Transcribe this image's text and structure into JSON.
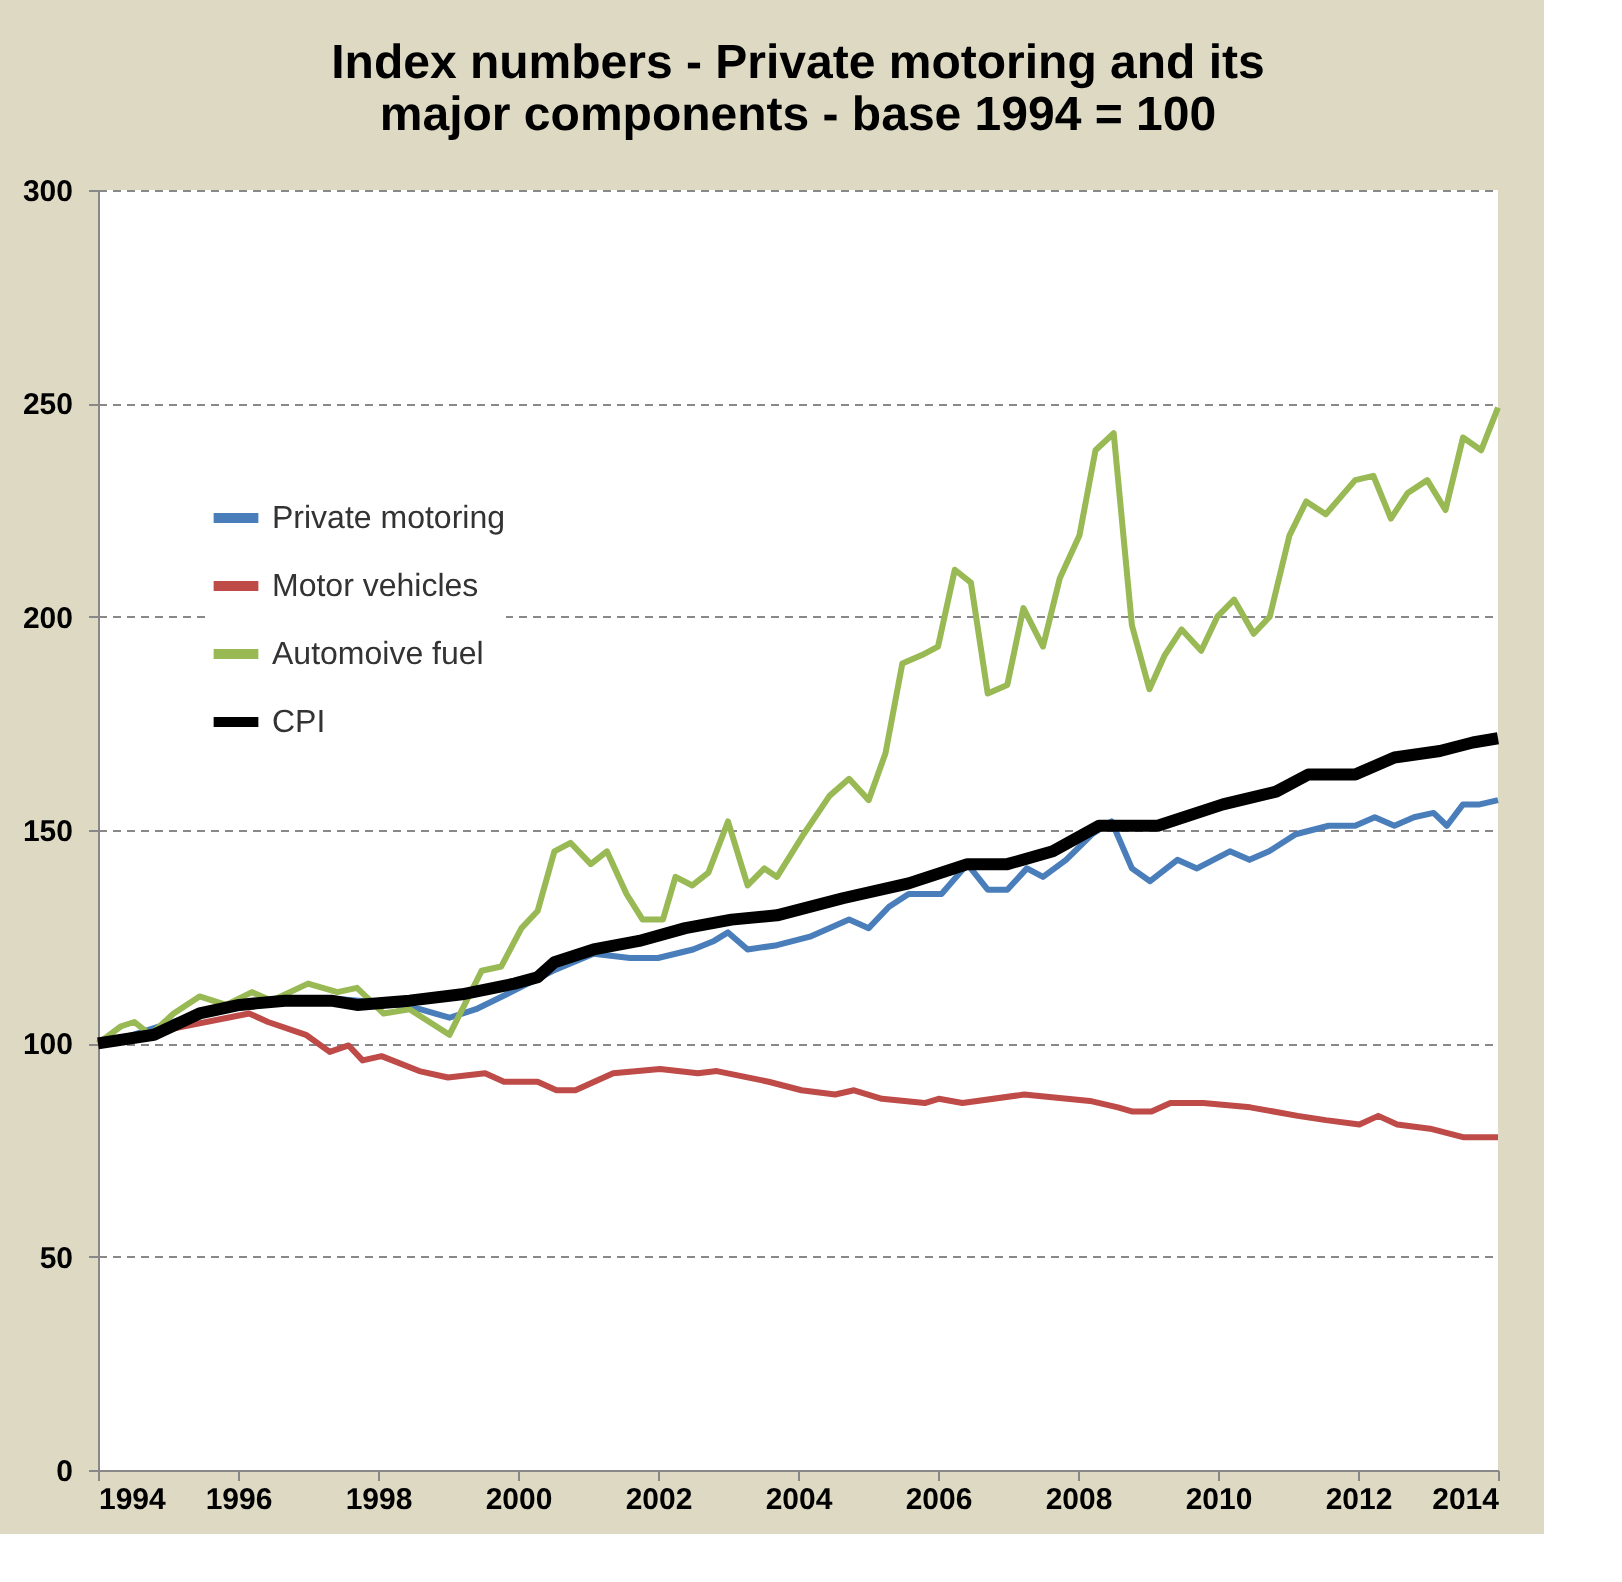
{
  "chart_data": {
    "type": "line",
    "title": "Index numbers - Private motoring and its major components - base 1994 = 100",
    "xlim": [
      1994,
      2014
    ],
    "xticks": [
      1994,
      1996,
      1998,
      2000,
      2002,
      2004,
      2006,
      2008,
      2010,
      2012,
      2014
    ],
    "ylim": [
      0,
      300
    ],
    "yticks": [
      0,
      50,
      100,
      150,
      200,
      250,
      300
    ],
    "grid": "y",
    "legend": "left",
    "marker": "none",
    "line_style": "solid",
    "series": [
      {
        "name": "Private motoring",
        "color": "#4a7ebb",
        "x": [
          1994,
          1994.5,
          1995.45,
          1996.02,
          1996.67,
          1997.33,
          1998.08,
          1998.6,
          1999.02,
          1999.4,
          1999.9,
          2000.5,
          2001.08,
          2001.6,
          2002.0,
          2002.5,
          2002.8,
          2003.0,
          2003.28,
          2003.7,
          2004.17,
          2004.73,
          2005.01,
          2005.3,
          2005.58,
          2006.05,
          2006.42,
          2006.71,
          2006.99,
          2007.27,
          2007.5,
          2007.83,
          2008.2,
          2008.48,
          2008.77,
          2009.03,
          2009.42,
          2009.7,
          2010.17,
          2010.45,
          2010.73,
          2011.11,
          2011.58,
          2011.96,
          2012.24,
          2012.52,
          2012.8,
          2013.08,
          2013.27,
          2013.5,
          2013.74,
          2014
        ],
        "values": [
          100,
          102,
          107,
          109,
          110.5,
          110.5,
          109.5,
          108,
          106,
          108,
          112,
          117,
          121,
          120,
          120,
          122,
          124,
          126,
          122,
          123,
          125,
          129,
          127,
          132,
          135,
          135,
          142,
          136,
          136,
          141,
          139,
          143,
          149,
          152,
          141,
          138,
          143,
          141,
          145,
          143,
          145,
          149,
          151,
          151,
          153,
          151,
          153,
          154,
          151,
          156,
          156,
          157
        ]
      },
      {
        "name": "Motor vehicles",
        "color": "#be4b48",
        "x": [
          1994,
          1996.16,
          1996.43,
          1996.97,
          1997.31,
          1997.58,
          1997.78,
          1998.05,
          1998.59,
          1999.0,
          1999.53,
          1999.8,
          2000.28,
          2000.55,
          2000.82,
          2001.36,
          2002.03,
          2002.57,
          2002.84,
          2003.58,
          2004.05,
          2004.53,
          2004.8,
          2005.2,
          2005.81,
          2006.01,
          2006.35,
          2007.23,
          2008.17,
          2008.57,
          2008.78,
          2009.05,
          2009.32,
          2009.79,
          2010.46,
          2011.14,
          2011.54,
          2012.02,
          2012.29,
          2012.56,
          2013.03,
          2013.5,
          2014.0
        ],
        "values": [
          100,
          107,
          105,
          102,
          98,
          99.5,
          96,
          97,
          93.5,
          92,
          93,
          91,
          91,
          89,
          89,
          93,
          94,
          93,
          93.5,
          91,
          89,
          88,
          89,
          87,
          86,
          87,
          86,
          88,
          86.5,
          85,
          84,
          84,
          86,
          86,
          85,
          83,
          82,
          81,
          83,
          81,
          80,
          78,
          78
        ]
      },
      {
        "name": "Automoive fuel",
        "color": "#98b954",
        "x": [
          1994,
          1994.33,
          1994.52,
          1994.75,
          1995.08,
          1995.45,
          1995.83,
          1996.2,
          1996.48,
          1997.0,
          1997.42,
          1997.7,
          1998.08,
          1998.45,
          1999.02,
          1999.48,
          1999.76,
          2000.05,
          2000.28,
          2000.52,
          2000.75,
          2001.04,
          2001.27,
          2001.55,
          2001.78,
          2002.07,
          2002.25,
          2002.49,
          2002.72,
          2003.0,
          2003.28,
          2003.52,
          2003.7,
          2004.08,
          2004.45,
          2004.73,
          2005.01,
          2005.25,
          2005.49,
          2005.77,
          2006.0,
          2006.24,
          2006.47,
          2006.71,
          2006.99,
          2007.22,
          2007.5,
          2007.74,
          2008.02,
          2008.25,
          2008.51,
          2008.77,
          2009.02,
          2009.24,
          2009.48,
          2009.76,
          2009.99,
          2010.23,
          2010.51,
          2010.74,
          2011.02,
          2011.26,
          2011.54,
          2011.96,
          2012.22,
          2012.47,
          2012.71,
          2012.99,
          2013.25,
          2013.5,
          2013.76,
          2014
        ],
        "values": [
          100,
          104,
          105,
          102,
          107,
          111,
          109,
          112,
          110,
          114,
          112,
          113,
          107,
          108,
          102,
          117,
          118,
          127,
          131,
          145,
          147,
          142,
          145,
          135,
          129,
          129,
          139,
          137,
          140,
          152,
          137,
          141,
          139,
          149,
          158,
          162,
          157,
          168,
          189,
          191,
          193,
          211,
          208,
          182,
          184,
          202,
          193,
          209,
          219,
          239,
          243,
          198,
          183,
          191,
          197,
          192,
          200,
          204,
          196,
          200,
          219,
          227,
          224,
          232,
          233,
          223,
          229,
          232,
          225,
          242,
          239,
          249
        ]
      },
      {
        "name": "CPI",
        "color": "#000000",
        "x": [
          1994,
          1994.8,
          1995.45,
          1996.02,
          1996.67,
          1997.33,
          1997.7,
          1998.45,
          1999.2,
          1999.95,
          2000.28,
          2000.52,
          2001.08,
          2001.73,
          2002.39,
          2003.05,
          2003.7,
          2004.64,
          2005.58,
          2006.42,
          2006.99,
          2007.64,
          2008.3,
          2009.14,
          2010.07,
          2010.83,
          2011.29,
          2011.96,
          2012.52,
          2013.17,
          2013.64,
          2014
        ],
        "values": [
          100,
          102,
          107,
          109,
          110,
          110,
          109,
          110,
          111.5,
          114,
          115.5,
          119,
          122,
          124,
          127,
          129,
          130,
          134,
          137.5,
          142,
          142,
          145,
          151,
          151,
          156,
          159,
          163,
          163,
          167,
          168.5,
          170.5,
          171.5
        ]
      }
    ]
  }
}
